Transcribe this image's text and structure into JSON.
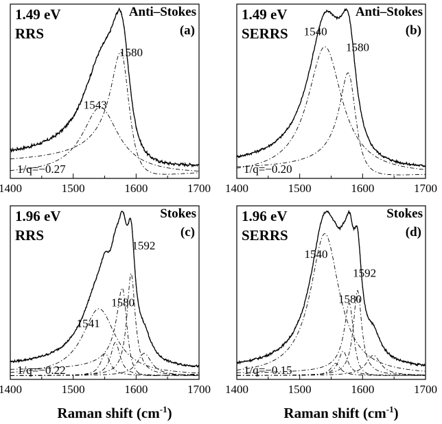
{
  "figure": {
    "xlabel_main": "Raman shift (cm",
    "xlabel_sup": "-1",
    "xlabel_close": ")"
  },
  "chart_data": [
    {
      "type": "line",
      "panel": "(a)",
      "energy": "1.49 eV",
      "method": "RRS",
      "regime": "Anti–Stokes",
      "fano": "1/q=−0.27",
      "xlim": [
        1400,
        1700
      ],
      "xticks": [
        "1400",
        "1500",
        "1600",
        "1700"
      ],
      "components": [
        {
          "type": "lorentz",
          "w0": 1543,
          "gamma": 35,
          "amp": 0.5
        },
        {
          "type": "fano",
          "w0": 1580,
          "gamma": 18,
          "amp": 0.85,
          "invq": -0.27
        }
      ],
      "baseline": 0.05,
      "noise": 0.012,
      "peak_labels": [
        {
          "text": "1543",
          "x": 1535
        },
        {
          "text": "1580",
          "x": 1592
        }
      ]
    },
    {
      "type": "line",
      "panel": "(b)",
      "energy": "1.49 eV",
      "method": "SERRS",
      "regime": "Anti–Stokes",
      "fano": "1/q=−0.20",
      "xlim": [
        1400,
        1700
      ],
      "xticks": [
        "1400",
        "1500",
        "1600",
        "1700"
      ],
      "components": [
        {
          "type": "lorentz",
          "w0": 1540,
          "gamma": 33,
          "amp": 0.81
        },
        {
          "type": "fano",
          "w0": 1580,
          "gamma": 16,
          "amp": 0.62,
          "invq": -0.2
        }
      ],
      "baseline": 0.03,
      "noise": 0.008,
      "peak_labels": [
        {
          "text": "1540",
          "x": 1525
        },
        {
          "text": "1580",
          "x": 1592
        }
      ]
    },
    {
      "type": "line",
      "panel": "(c)",
      "energy": "1.96 eV",
      "method": "RRS",
      "regime": "Stokes",
      "fano": "1/q=−0.22",
      "xlim": [
        1400,
        1700
      ],
      "xticks": [
        "1400",
        "1500",
        "1600",
        "1700"
      ],
      "components": [
        {
          "type": "lorentz",
          "w0": 1541,
          "gamma": 32,
          "amp": 0.36
        },
        {
          "type": "lorentz",
          "w0": 1551,
          "gamma": 9,
          "amp": 0.12
        },
        {
          "type": "lorentz",
          "w0": 1567,
          "gamma": 9,
          "amp": 0.18
        },
        {
          "type": "fano",
          "w0": 1580,
          "gamma": 10,
          "amp": 0.45,
          "invq": -0.22
        },
        {
          "type": "lorentz",
          "w0": 1592,
          "gamma": 8,
          "amp": 0.55
        },
        {
          "type": "lorentz",
          "w0": 1613,
          "gamma": 14,
          "amp": 0.12
        }
      ],
      "baseline": 0.03,
      "noise": 0.006,
      "peak_labels": [
        {
          "text": "1541",
          "x": 1524
        },
        {
          "text": "1580",
          "x": 1579
        },
        {
          "text": "1592",
          "x": 1612
        }
      ]
    },
    {
      "type": "line",
      "panel": "(d)",
      "energy": "1.96 eV",
      "method": "SERRS",
      "regime": "Stokes",
      "fano": "1/q=−0.15",
      "xlim": [
        1400,
        1700
      ],
      "xticks": [
        "1400",
        "1500",
        "1600",
        "1700"
      ],
      "components": [
        {
          "type": "lorentz",
          "w0": 1540,
          "gamma": 28,
          "amp": 0.7
        },
        {
          "type": "lorentz",
          "w0": 1557,
          "gamma": 9,
          "amp": 0.06
        },
        {
          "type": "lorentz",
          "w0": 1569,
          "gamma": 9,
          "amp": 0.12
        },
        {
          "type": "fano",
          "w0": 1580,
          "gamma": 9,
          "amp": 0.35,
          "invq": -0.15
        },
        {
          "type": "lorentz",
          "w0": 1592,
          "gamma": 8,
          "amp": 0.42
        },
        {
          "type": "lorentz",
          "w0": 1617,
          "gamma": 14,
          "amp": 0.1
        }
      ],
      "baseline": 0.03,
      "noise": 0.006,
      "peak_labels": [
        {
          "text": "1540",
          "x": 1526
        },
        {
          "text": "1580",
          "x": 1580
        },
        {
          "text": "1592",
          "x": 1603
        }
      ]
    }
  ]
}
